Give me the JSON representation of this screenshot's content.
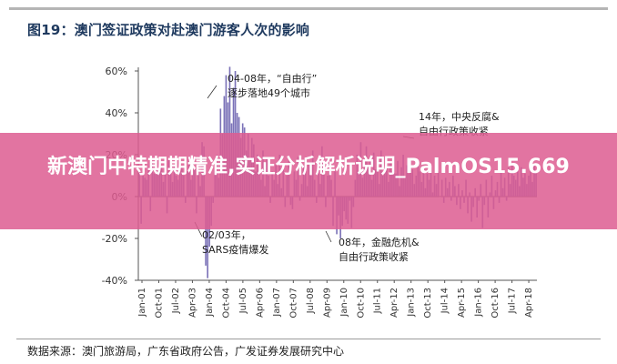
{
  "header": {
    "title": "图19：澳门签证政策对赴澳门游客人次的影响"
  },
  "footer": {
    "source": "数据来源：澳门旅游局，广东省政府公告，广发证券发展研究中心"
  },
  "overlay": {
    "text": "新澳门中特期期精准,实证分析解析说明_PalmOS15.669",
    "color": "#dd5c91"
  },
  "chart_data": {
    "type": "bar",
    "title": "图19：澳门签证政策对赴澳门游客人次的影响",
    "ylim": [
      -40,
      60
    ],
    "yticks": [
      "60%",
      "40%",
      "20%",
      "0%",
      "-20%",
      "-40%"
    ],
    "xticks": [
      "Jan-01",
      "Oct-01",
      "Jul-02",
      "Apr-03",
      "Jan-04",
      "Oct-04",
      "Jul-05",
      "Apr-06",
      "Jan-07",
      "Oct-07",
      "Jul-08",
      "Apr-09",
      "Jan-10",
      "Oct-10",
      "Jul-11",
      "Apr-12",
      "Jan-13",
      "Oct-13",
      "Jul-14",
      "Apr-15",
      "Jan-16",
      "Oct-16",
      "Jul-17",
      "Apr-18"
    ],
    "bar_color": "#7b72b8",
    "monthly_values": [
      12,
      -13,
      10,
      9,
      8,
      14,
      -7,
      17,
      11,
      15,
      12,
      16,
      14,
      7,
      13,
      -8,
      18,
      12,
      7,
      15,
      10,
      8,
      16,
      14,
      10,
      -3,
      12,
      19,
      8,
      17,
      13,
      -8,
      15,
      5,
      26,
      24,
      -33,
      -39,
      -24,
      -14,
      -3,
      12,
      20,
      9,
      42,
      30,
      48,
      58,
      45,
      62,
      35,
      52,
      60,
      40,
      38,
      28,
      35,
      33,
      22,
      30,
      18,
      28,
      25,
      12,
      20,
      15,
      8,
      22,
      5,
      18,
      10,
      -3,
      12,
      8,
      15,
      6,
      20,
      4,
      14,
      -5,
      10,
      17,
      -4,
      -6,
      12,
      8,
      19,
      -2,
      6,
      14,
      18,
      5,
      16,
      10,
      22,
      8,
      -3,
      14,
      6,
      24,
      13,
      -5,
      10,
      16,
      8,
      -14,
      12,
      -18,
      -9,
      -20,
      -14,
      -7,
      -11,
      -13,
      -2,
      -15,
      -5,
      8,
      20,
      12,
      26,
      9,
      18,
      24,
      14,
      19,
      8,
      21,
      13,
      16,
      6,
      22,
      10,
      14,
      18,
      7,
      16,
      12,
      19,
      11,
      17,
      5,
      14,
      20,
      9,
      15,
      11,
      18,
      13,
      6,
      10,
      16,
      12,
      7,
      15,
      4,
      11,
      8,
      14,
      2,
      10,
      6,
      12,
      0,
      8,
      -3,
      9,
      4,
      7,
      -2,
      10,
      5,
      -4,
      6,
      -6,
      3,
      -3,
      8,
      -8,
      2,
      -12,
      -5,
      4,
      -10,
      -2,
      6,
      -15,
      -4,
      8,
      -10,
      2,
      10,
      -6,
      3,
      7,
      -3,
      12,
      4,
      9,
      -2,
      14,
      6,
      16,
      10,
      8,
      12,
      5,
      14,
      9,
      11,
      6,
      10,
      13,
      7,
      15,
      12
    ],
    "annotations": [
      {
        "text": "04-08年，“自由行”",
        "line2": "逐步落地49个城市"
      },
      {
        "text": "14年，中央反腐&",
        "line2": "自由行政策收紧"
      },
      {
        "text": "02/03年，",
        "line2": "SARS疫情爆发"
      },
      {
        "text": "08年，金融危机&",
        "line2": "自由行政策收紧"
      }
    ]
  }
}
